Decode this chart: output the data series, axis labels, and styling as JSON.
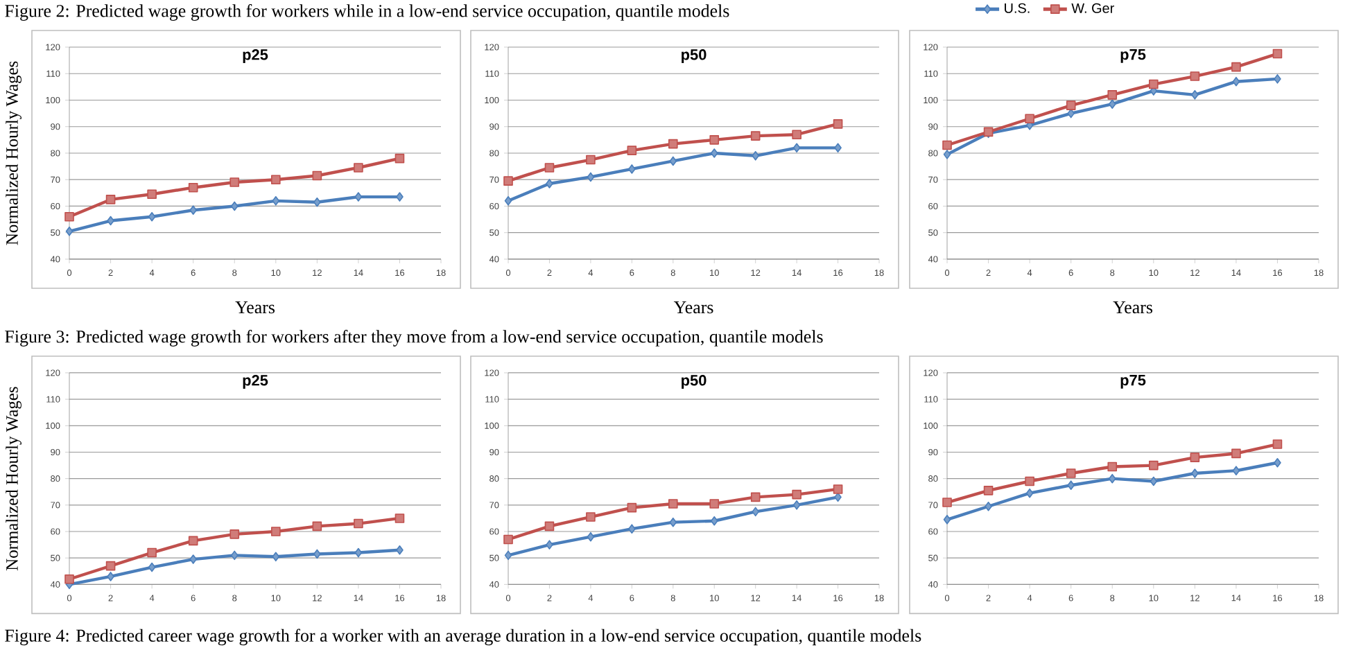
{
  "chart_data": [
    {
      "type": "line",
      "title": "p25",
      "xlabel": "Years",
      "ylabel": "Normalized Hourly Wages",
      "annotations": [
        "Figure 2: Predicted wage growth for workers while in a low-end service occupation, quantile models"
      ],
      "x": [
        0,
        2,
        4,
        6,
        8,
        10,
        12,
        14,
        16
      ],
      "xlim": [
        0,
        18
      ],
      "xticks": [
        0,
        2,
        4,
        6,
        8,
        10,
        12,
        14,
        16,
        18
      ],
      "ylim": [
        40,
        120
      ],
      "yticks": [
        40,
        50,
        60,
        70,
        80,
        90,
        100,
        110,
        120
      ],
      "grid": "y",
      "series": [
        {
          "color": "#4a7ebb",
          "marker": "diamond",
          "values": [
            50.5,
            54.5,
            56,
            58.5,
            60,
            62,
            61.5,
            63.5,
            63.5
          ]
        },
        {
          "color": "#c0504d",
          "marker": "square",
          "values": [
            56,
            62.5,
            64.5,
            67,
            69,
            70,
            71.5,
            74.5,
            78
          ]
        }
      ]
    },
    {
      "type": "line",
      "title": "p50",
      "xlabel": "Years",
      "x": [
        0,
        2,
        4,
        6,
        8,
        10,
        12,
        14,
        16
      ],
      "xlim": [
        0,
        18
      ],
      "xticks": [
        0,
        2,
        4,
        6,
        8,
        10,
        12,
        14,
        16,
        18
      ],
      "ylim": [
        40,
        120
      ],
      "yticks": [
        40,
        50,
        60,
        70,
        80,
        90,
        100,
        110,
        120
      ],
      "grid": "y",
      "series": [
        {
          "color": "#4a7ebb",
          "marker": "diamond",
          "values": [
            62,
            68.5,
            71,
            74,
            77,
            80,
            79,
            82,
            82
          ]
        },
        {
          "color": "#c0504d",
          "marker": "square",
          "values": [
            69.5,
            74.5,
            77.5,
            81,
            83.5,
            85,
            86.5,
            87,
            91
          ]
        }
      ]
    },
    {
      "type": "line",
      "title": "p75",
      "xlabel": "Years",
      "legend": "top",
      "x": [
        0,
        2,
        4,
        6,
        8,
        10,
        12,
        14,
        16
      ],
      "xlim": [
        0,
        18
      ],
      "xticks": [
        0,
        2,
        4,
        6,
        8,
        10,
        12,
        14,
        16,
        18
      ],
      "ylim": [
        40,
        120
      ],
      "yticks": [
        40,
        50,
        60,
        70,
        80,
        90,
        100,
        110,
        120
      ],
      "grid": "y",
      "series": [
        {
          "name": "U.S.",
          "color": "#4a7ebb",
          "marker": "diamond",
          "values": [
            79.5,
            87.5,
            90.5,
            95,
            98.5,
            103.5,
            102,
            107,
            108
          ]
        },
        {
          "name": "W. Ger",
          "color": "#c0504d",
          "marker": "square",
          "values": [
            83,
            88,
            93,
            98,
            102,
            106,
            109,
            112.5,
            117.5
          ]
        }
      ]
    },
    {
      "type": "line",
      "title": "p25",
      "ylabel": "Normalized Hourly Wages",
      "annotations": [
        "Figure 3: Predicted wage growth for workers after they move from a low-end service occupation, quantile models",
        "Figure 4: Predicted career wage growth for a worker with an average duration in a low-end service occupation, quantile models"
      ],
      "x": [
        0,
        2,
        4,
        6,
        8,
        10,
        12,
        14,
        16
      ],
      "xlim": [
        0,
        18
      ],
      "xticks": [
        0,
        2,
        4,
        6,
        8,
        10,
        12,
        14,
        16,
        18
      ],
      "ylim": [
        40,
        120
      ],
      "yticks": [
        40,
        50,
        60,
        70,
        80,
        90,
        100,
        110,
        120
      ],
      "grid": "y",
      "series": [
        {
          "color": "#4a7ebb",
          "marker": "diamond",
          "values": [
            40,
            43,
            46.5,
            49.5,
            51,
            50.5,
            51.5,
            52,
            53
          ]
        },
        {
          "color": "#c0504d",
          "marker": "square",
          "values": [
            42,
            47,
            52,
            56.5,
            59,
            60,
            62,
            63,
            65
          ]
        }
      ]
    },
    {
      "type": "line",
      "title": "p50",
      "x": [
        0,
        2,
        4,
        6,
        8,
        10,
        12,
        14,
        16
      ],
      "xlim": [
        0,
        18
      ],
      "xticks": [
        0,
        2,
        4,
        6,
        8,
        10,
        12,
        14,
        16,
        18
      ],
      "ylim": [
        40,
        120
      ],
      "yticks": [
        40,
        50,
        60,
        70,
        80,
        90,
        100,
        110,
        120
      ],
      "grid": "y",
      "series": [
        {
          "color": "#4a7ebb",
          "marker": "diamond",
          "values": [
            51,
            55,
            58,
            61,
            63.5,
            64,
            67.5,
            70,
            73
          ]
        },
        {
          "color": "#c0504d",
          "marker": "square",
          "values": [
            57,
            62,
            65.5,
            69,
            70.5,
            70.5,
            73,
            74,
            76
          ]
        }
      ]
    },
    {
      "type": "line",
      "title": "p75",
      "x": [
        0,
        2,
        4,
        6,
        8,
        10,
        12,
        14,
        16
      ],
      "xlim": [
        0,
        18
      ],
      "xticks": [
        0,
        2,
        4,
        6,
        8,
        10,
        12,
        14,
        16,
        18
      ],
      "ylim": [
        40,
        120
      ],
      "yticks": [
        40,
        50,
        60,
        70,
        80,
        90,
        100,
        110,
        120
      ],
      "grid": "y",
      "series": [
        {
          "color": "#4a7ebb",
          "marker": "diamond",
          "values": [
            64.5,
            69.5,
            74.5,
            77.5,
            80,
            79,
            82,
            83,
            86
          ]
        },
        {
          "color": "#c0504d",
          "marker": "square",
          "values": [
            71,
            75.5,
            79,
            82,
            84.5,
            85,
            88,
            89.5,
            93
          ]
        }
      ]
    }
  ]
}
